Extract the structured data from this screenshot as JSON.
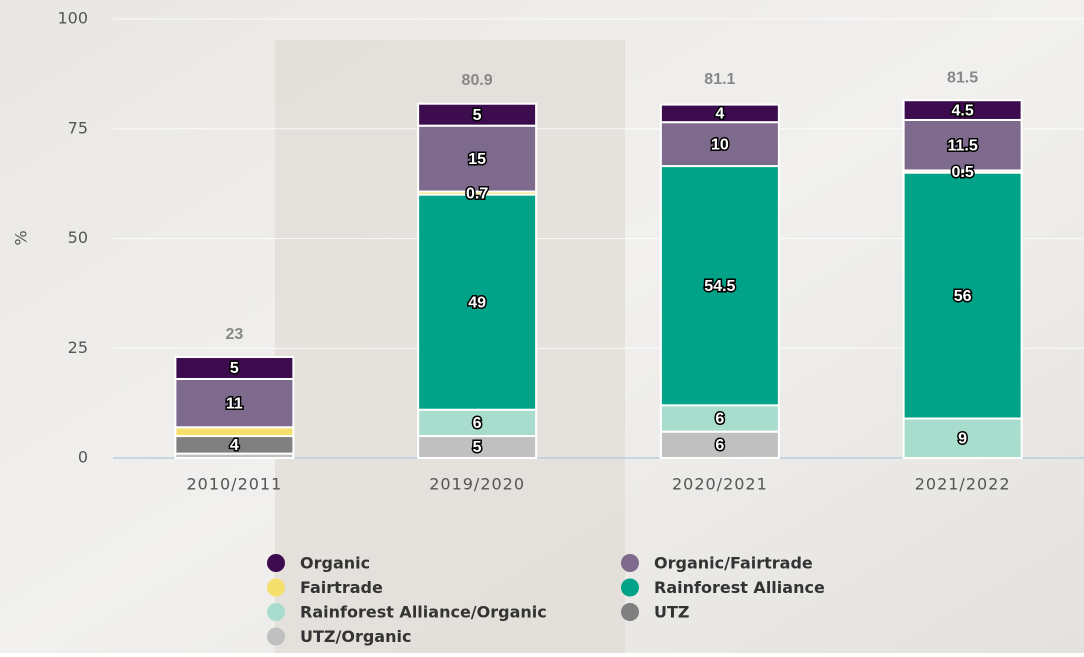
{
  "chart_data": {
    "type": "stacked-bar",
    "y_label": "%",
    "categories": [
      "2010/2011",
      "2019/2020",
      "2020/2021",
      "2021/2022"
    ],
    "totals": [
      23,
      80.9,
      81.1,
      81.5
    ],
    "ylim": [
      0,
      100
    ],
    "yticks": [
      0,
      25,
      50,
      75,
      100
    ],
    "grid": true,
    "series": [
      {
        "name": "Organic",
        "color": "#3d0c4e",
        "values": [
          5,
          5,
          4,
          4.5
        ],
        "value_labels": [
          "5",
          "5",
          "4",
          "4.5"
        ]
      },
      {
        "name": "Organic/Fairtrade",
        "color": "#7e6a8c",
        "values": [
          11,
          15,
          10,
          11.5
        ],
        "value_labels": [
          "11",
          "15",
          "10",
          "11.5"
        ]
      },
      {
        "name": "Fairtrade",
        "color": "#f5e06e",
        "values": [
          2,
          0.7,
          null,
          0.5
        ],
        "value_labels": [
          null,
          "0.7",
          null,
          "0.5"
        ]
      },
      {
        "name": "Rainforest Alliance",
        "color": "#00a387",
        "values": [
          null,
          49,
          54.5,
          56
        ],
        "value_labels": [
          null,
          "49",
          "54.5",
          "56"
        ]
      },
      {
        "name": "Rainforest Alliance/Organic",
        "color": "#a8dccd",
        "values": [
          null,
          6,
          6,
          9
        ],
        "value_labels": [
          null,
          "6",
          "6",
          "9"
        ]
      },
      {
        "name": "UTZ",
        "color": "#808080",
        "values": [
          4,
          null,
          null,
          null
        ],
        "value_labels": [
          "4",
          null,
          null,
          null
        ]
      },
      {
        "name": "UTZ/Organic",
        "color": "#c0c0c0",
        "values": [
          1,
          5,
          6,
          null
        ],
        "value_labels": [
          null,
          "5",
          "6",
          null
        ]
      }
    ]
  }
}
